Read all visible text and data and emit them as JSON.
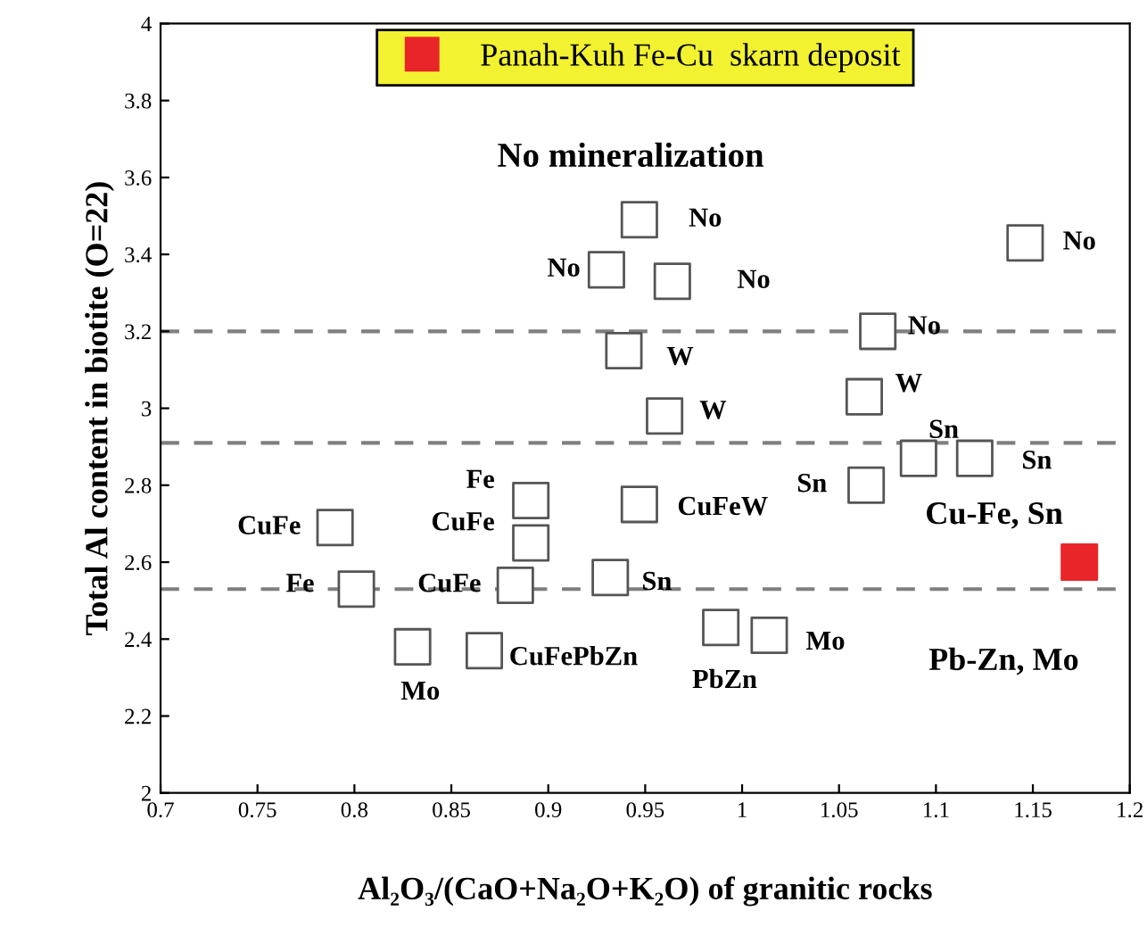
{
  "chart_data": {
    "type": "scatter",
    "xlabel": "Al₂O₃/(CaO+Na₂O+K₂O) of granitic rocks",
    "ylabel": "Total Al content in biotite (O=22)",
    "xlim": [
      0.7,
      1.2
    ],
    "xticks": [
      0.7,
      0.75,
      0.8,
      0.85,
      0.9,
      0.95,
      1,
      1.05,
      1.1,
      1.15,
      1.2
    ],
    "ylim": [
      2,
      4
    ],
    "yticks": [
      2,
      2.2,
      2.4,
      2.6,
      2.8,
      3,
      3.2,
      3.4,
      3.6,
      3.8,
      4
    ],
    "grid": false,
    "legend": "top",
    "marker": "square",
    "series": [
      {
        "color": "#555555",
        "x": [
          0.947,
          0.93,
          0.964,
          1.146,
          1.07,
          0.939,
          0.96,
          1.063,
          1.091,
          1.12,
          1.064,
          0.79,
          0.891,
          0.891,
          0.947,
          0.801,
          0.883,
          0.932,
          0.83,
          0.867,
          0.989,
          1.014
        ],
        "values": [
          3.49,
          3.36,
          3.33,
          3.43,
          3.2,
          3.15,
          2.98,
          3.03,
          2.87,
          2.87,
          2.8,
          2.69,
          2.76,
          2.65,
          2.75,
          2.53,
          2.54,
          2.56,
          2.38,
          2.37,
          2.43,
          2.41
        ],
        "value_labels": [
          "No",
          "No",
          "No",
          "No",
          "No",
          "W",
          "W",
          "W",
          "Sn",
          "Sn",
          "Sn",
          "CuFe",
          "Fe",
          "CuFe",
          "CuFeW",
          "Fe",
          "CuFe",
          "Sn",
          "Mo",
          "CuFePbZn",
          "PbZn",
          "Mo"
        ]
      },
      {
        "name": "Panah-Kuh Fe-Cu  skarn deposit",
        "color": "#e8262a",
        "x": [
          1.174
        ],
        "values": [
          2.6
        ]
      }
    ],
    "ref_lines": [
      {
        "axis": "y",
        "value": 3.2,
        "color": "#7f7f7f",
        "line_style": "dashed"
      },
      {
        "axis": "y",
        "value": 2.91,
        "color": "#7f7f7f",
        "line_style": "dashed"
      },
      {
        "axis": "y",
        "value": 2.53,
        "color": "#7f7f7f",
        "line_style": "dashed"
      }
    ],
    "annotations": [
      "No mineralization",
      "Cu-Fe, Sn",
      "Pb-Zn, Mo"
    ]
  }
}
